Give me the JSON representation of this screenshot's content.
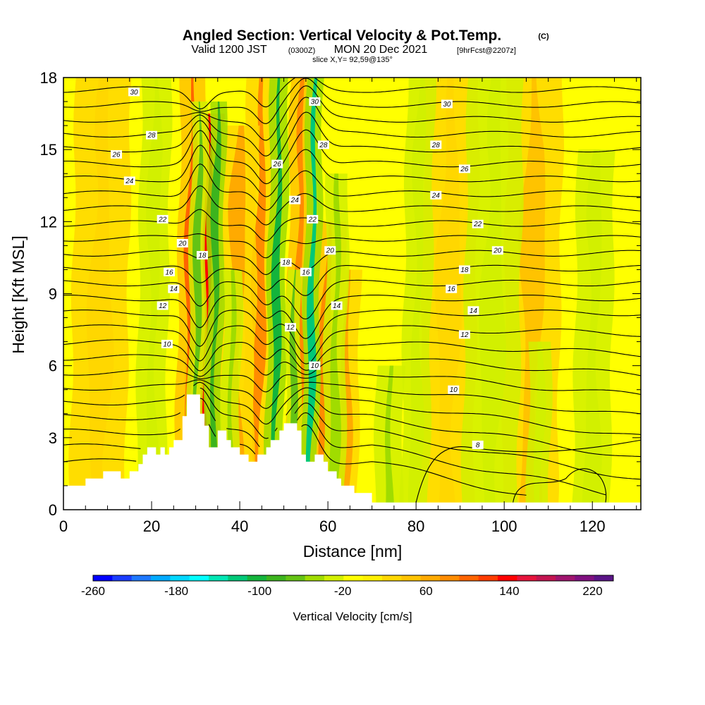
{
  "chart_data": {
    "type": "heatmap",
    "title": "Angled Section: Vertical Velocity & Pot.Temp.",
    "title_mark": "(C)",
    "subtitle": {
      "prefix": "Valid 1200 JST",
      "utc": "(0300Z)",
      "date": "MON 20 Dec 2021",
      "forecast": "[9hrFcst@2207z]"
    },
    "slice_text": "slice X,Y= 92,59@135°",
    "xlabel": "Distance [nm]",
    "ylabel": "Height [Kft MSL]",
    "xlim": [
      0,
      131
    ],
    "ylim": [
      0,
      18
    ],
    "x_ticks": [
      "0",
      "20",
      "40",
      "60",
      "80",
      "100",
      "120"
    ],
    "x_tick_values": [
      0,
      20,
      40,
      60,
      80,
      100,
      120
    ],
    "y_ticks": [
      "0",
      "3",
      "6",
      "9",
      "12",
      "15",
      "18"
    ],
    "y_tick_values": [
      0,
      3,
      6,
      9,
      12,
      15,
      18
    ],
    "grid": false,
    "colorbar": {
      "title": "Vertical Velocity [cm/s]",
      "labels": [
        "-260",
        "-180",
        "-100",
        "-20",
        "60",
        "140",
        "220"
      ],
      "label_values": [
        -260,
        -180,
        -100,
        -20,
        60,
        140,
        220
      ],
      "range": [
        -260,
        240
      ],
      "colors": [
        "#0000ff",
        "#1a3cff",
        "#1e78ff",
        "#00aaff",
        "#00d7ff",
        "#00ffff",
        "#00e6b4",
        "#00c878",
        "#14b43c",
        "#3cb41e",
        "#64c314",
        "#a0dc00",
        "#d2f000",
        "#ffff00",
        "#fff000",
        "#ffd700",
        "#ffc300",
        "#ffaa00",
        "#ff8c00",
        "#ff6400",
        "#ff3c00",
        "#ff0000",
        "#e6143c",
        "#c31450",
        "#a0146e",
        "#801080",
        "#5a1487"
      ]
    },
    "terrain_kft": [
      [
        0,
        1.0
      ],
      [
        5,
        1.0
      ],
      [
        5,
        1.3
      ],
      [
        9,
        1.3
      ],
      [
        9,
        1.6
      ],
      [
        13,
        1.6
      ],
      [
        13,
        1.3
      ],
      [
        15,
        1.3
      ],
      [
        15,
        1.6
      ],
      [
        17,
        1.6
      ],
      [
        17,
        1.9
      ],
      [
        18,
        1.9
      ],
      [
        18,
        2.3
      ],
      [
        19,
        2.3
      ],
      [
        19,
        2.6
      ],
      [
        21,
        2.6
      ],
      [
        21,
        2.3
      ],
      [
        22,
        2.3
      ],
      [
        22,
        2.6
      ],
      [
        23,
        2.6
      ],
      [
        23,
        2.3
      ],
      [
        24,
        2.3
      ],
      [
        24,
        2.6
      ],
      [
        25,
        2.6
      ],
      [
        25,
        2.9
      ],
      [
        27,
        2.9
      ],
      [
        27,
        3.9
      ],
      [
        28,
        3.9
      ],
      [
        28,
        4.8
      ],
      [
        31,
        4.8
      ],
      [
        31,
        4.0
      ],
      [
        32,
        4.0
      ],
      [
        32,
        3.5
      ],
      [
        33,
        3.5
      ],
      [
        33,
        2.6
      ],
      [
        35,
        2.6
      ],
      [
        35,
        3.3
      ],
      [
        37,
        3.3
      ],
      [
        37,
        2.9
      ],
      [
        38,
        2.9
      ],
      [
        38,
        2.6
      ],
      [
        40,
        2.6
      ],
      [
        40,
        2.3
      ],
      [
        42,
        2.3
      ],
      [
        42,
        2.0
      ],
      [
        44,
        2.0
      ],
      [
        44,
        2.3
      ],
      [
        46,
        2.3
      ],
      [
        46,
        2.6
      ],
      [
        47,
        2.6
      ],
      [
        47,
        2.9
      ],
      [
        49,
        2.9
      ],
      [
        49,
        3.3
      ],
      [
        50,
        3.3
      ],
      [
        50,
        3.6
      ],
      [
        53,
        3.6
      ],
      [
        53,
        3.3
      ],
      [
        54,
        3.3
      ],
      [
        54,
        2.3
      ],
      [
        55,
        2.3
      ],
      [
        55,
        2.0
      ],
      [
        57,
        2.0
      ],
      [
        57,
        2.3
      ],
      [
        59,
        2.3
      ],
      [
        59,
        2.0
      ],
      [
        60,
        2.0
      ],
      [
        60,
        1.6
      ],
      [
        62,
        1.6
      ],
      [
        62,
        1.3
      ],
      [
        63,
        1.3
      ],
      [
        63,
        1.0
      ],
      [
        66,
        1.0
      ],
      [
        66,
        0.7
      ],
      [
        70,
        0.7
      ],
      [
        70,
        0.3
      ],
      [
        131,
        0.3
      ]
    ],
    "updrafts": [
      {
        "x": 31.5,
        "w": 1.8,
        "top": 16.5,
        "v": 130
      },
      {
        "x": 28.5,
        "w": 1.4,
        "top": 18,
        "v": 100
      },
      {
        "x": 44,
        "w": 1.6,
        "top": 18,
        "v": 80
      },
      {
        "x": 53,
        "w": 1.2,
        "top": 18,
        "v": 85
      },
      {
        "x": 59.5,
        "w": 1.8,
        "top": 12,
        "v": 90
      },
      {
        "x": 64,
        "w": 1.4,
        "top": 10,
        "v": 60
      },
      {
        "x": 39,
        "w": 2.0,
        "top": 16,
        "v": 60
      },
      {
        "x": 106,
        "w": 3.0,
        "top": 18,
        "v": 45
      },
      {
        "x": 87,
        "w": 3.0,
        "top": 18,
        "v": 30
      },
      {
        "x": 8,
        "w": 3.0,
        "top": 18,
        "v": 30
      }
    ],
    "downdrafts": [
      {
        "x": 34,
        "w": 0.9,
        "top": 17,
        "v": -90
      },
      {
        "x": 30,
        "w": 0.9,
        "top": 17,
        "v": -60
      },
      {
        "x": 48,
        "w": 1.0,
        "top": 18,
        "v": -110
      },
      {
        "x": 56,
        "w": 0.9,
        "top": 18,
        "v": -120
      },
      {
        "x": 52,
        "w": 0.8,
        "top": 10,
        "v": -70
      },
      {
        "x": 61.5,
        "w": 1.2,
        "top": 14,
        "v": -55
      },
      {
        "x": 20,
        "w": 1.6,
        "top": 18,
        "v": -35
      },
      {
        "x": 38,
        "w": 1.0,
        "top": 10,
        "v": -40
      },
      {
        "x": 74,
        "w": 1.5,
        "top": 6,
        "v": -40
      },
      {
        "x": 97,
        "w": 3.0,
        "top": 18,
        "v": -35
      },
      {
        "x": 108,
        "w": 1.2,
        "top": 7,
        "v": -35
      },
      {
        "x": 80,
        "w": 1.5,
        "top": 18,
        "v": -25
      },
      {
        "x": 120,
        "w": 2.0,
        "top": 15,
        "v": -25
      }
    ],
    "contour_labels": [
      {
        "text": "30",
        "x": 16,
        "y": 17.4
      },
      {
        "text": "30",
        "x": 57,
        "y": 17.0
      },
      {
        "text": "30",
        "x": 87,
        "y": 16.9
      },
      {
        "text": "28",
        "x": 20,
        "y": 15.6
      },
      {
        "text": "28",
        "x": 59,
        "y": 15.2
      },
      {
        "text": "28",
        "x": 84.5,
        "y": 15.2
      },
      {
        "text": "26",
        "x": 12,
        "y": 14.8
      },
      {
        "text": "26",
        "x": 48.5,
        "y": 14.4
      },
      {
        "text": "26",
        "x": 91,
        "y": 14.2
      },
      {
        "text": "24",
        "x": 15,
        "y": 13.7
      },
      {
        "text": "24",
        "x": 52.5,
        "y": 12.9
      },
      {
        "text": "24",
        "x": 84.5,
        "y": 13.1
      },
      {
        "text": "22",
        "x": 22.5,
        "y": 12.1
      },
      {
        "text": "22",
        "x": 56.5,
        "y": 12.1
      },
      {
        "text": "22",
        "x": 94,
        "y": 11.9
      },
      {
        "text": "20",
        "x": 27,
        "y": 11.1
      },
      {
        "text": "20",
        "x": 60.5,
        "y": 10.8
      },
      {
        "text": "20",
        "x": 98.5,
        "y": 10.8
      },
      {
        "text": "18",
        "x": 31.5,
        "y": 10.6
      },
      {
        "text": "18",
        "x": 50.5,
        "y": 10.3
      },
      {
        "text": "18",
        "x": 91,
        "y": 10.0
      },
      {
        "text": "16",
        "x": 24,
        "y": 9.9
      },
      {
        "text": "16",
        "x": 55,
        "y": 9.9
      },
      {
        "text": "16",
        "x": 88,
        "y": 9.2
      },
      {
        "text": "14",
        "x": 25,
        "y": 9.2
      },
      {
        "text": "14",
        "x": 62,
        "y": 8.5
      },
      {
        "text": "14",
        "x": 93,
        "y": 8.3
      },
      {
        "text": "12",
        "x": 22.5,
        "y": 8.5
      },
      {
        "text": "12",
        "x": 51.5,
        "y": 7.6
      },
      {
        "text": "12",
        "x": 91,
        "y": 7.3
      },
      {
        "text": "10",
        "x": 23.5,
        "y": 6.9
      },
      {
        "text": "10",
        "x": 57,
        "y": 6.0
      },
      {
        "text": "10",
        "x": 88.5,
        "y": 5.0
      },
      {
        "text": "8",
        "x": 94,
        "y": 2.7
      }
    ]
  }
}
